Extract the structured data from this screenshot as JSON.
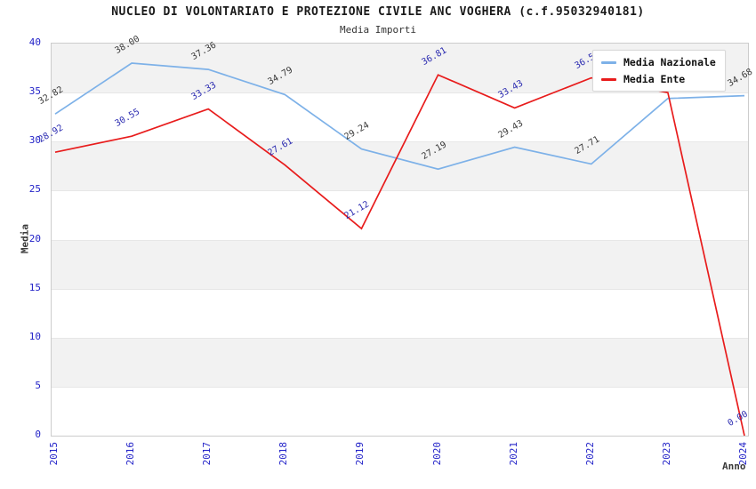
{
  "chart_data": {
    "type": "line",
    "title": "NUCLEO DI VOLONTARIATO E PROTEZIONE CIVILE ANC VOGHERA (c.f.95032940181)",
    "subtitle": "Media Importi",
    "xlabel": "Anno",
    "ylabel": "Media",
    "x_labels": [
      "2015",
      "2016",
      "2017",
      "2018",
      "2019",
      "2020",
      "2021",
      "2022",
      "2023",
      "2024"
    ],
    "y_ticks": [
      0,
      5,
      10,
      15,
      20,
      25,
      30,
      35,
      40
    ],
    "ylim": [
      0,
      40
    ],
    "legend_position": "top-right",
    "grid": "alternating horizontal bands every 5 units",
    "series": [
      {
        "name": "Media Nazionale",
        "color": "#7db1e8",
        "label_color": "#3a3a3a",
        "values": [
          32.82,
          38.0,
          37.36,
          34.79,
          29.24,
          27.19,
          29.43,
          27.71,
          34.4,
          34.68
        ],
        "point_labels": [
          "32.82",
          "38.00",
          "37.36",
          "34.79",
          "29.24",
          "27.19",
          "29.43",
          "27.71",
          null,
          "34.68"
        ]
      },
      {
        "name": "Media Ente",
        "color": "#e81c1c",
        "label_color": "#2a2ab0",
        "values": [
          28.92,
          30.55,
          33.33,
          27.61,
          21.12,
          36.81,
          33.43,
          36.5,
          35.0,
          0.0
        ],
        "point_labels": [
          "28.92",
          "30.55",
          "33.33",
          "27.61",
          "21.12",
          "36.81",
          "33.43",
          "36.5",
          null,
          "0.00"
        ]
      }
    ],
    "colors": {
      "band_gray": "#f2f2f2",
      "band_white": "#ffffff",
      "tick_label": "#2323c8",
      "spine": "#cccccc"
    }
  }
}
